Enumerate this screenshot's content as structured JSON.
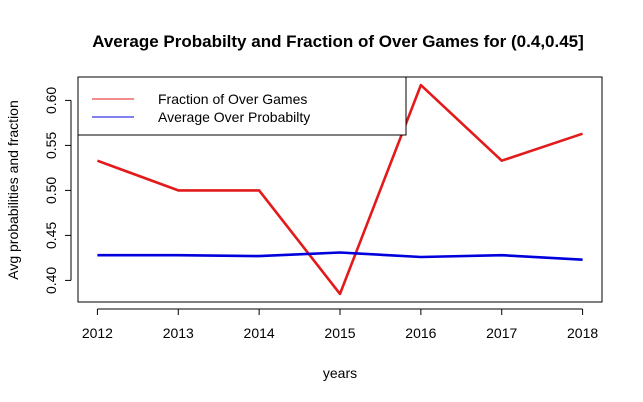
{
  "chart_data": {
    "type": "line",
    "title": "Average Probabilty and Fraction of Over Games for (0.4,0.45]",
    "xlabel": "years",
    "ylabel": "Avg probabilities and fraction",
    "x": [
      2012,
      2013,
      2014,
      2015,
      2016,
      2017,
      2018
    ],
    "x_tick_labels": [
      "2012",
      "2013",
      "2014",
      "2015",
      "2016",
      "2017",
      "2018"
    ],
    "y_ticks": [
      0.4,
      0.45,
      0.5,
      0.55,
      0.6
    ],
    "y_tick_labels": [
      "0.40",
      "0.45",
      "0.50",
      "0.55",
      "0.60"
    ],
    "xlim": [
      2011.76,
      2018.24
    ],
    "ylim": [
      0.376,
      0.626
    ],
    "grid": false,
    "legend_position": "top-left",
    "series": [
      {
        "name": "Fraction of Over Games",
        "color": "#e31a1c",
        "values": [
          0.533,
          0.5,
          0.5,
          0.385,
          0.617,
          0.533,
          0.563
        ]
      },
      {
        "name": "Average Over Probabilty",
        "color": "#0000dd",
        "values": [
          0.428,
          0.428,
          0.427,
          0.431,
          0.426,
          0.428,
          0.423
        ]
      }
    ]
  }
}
